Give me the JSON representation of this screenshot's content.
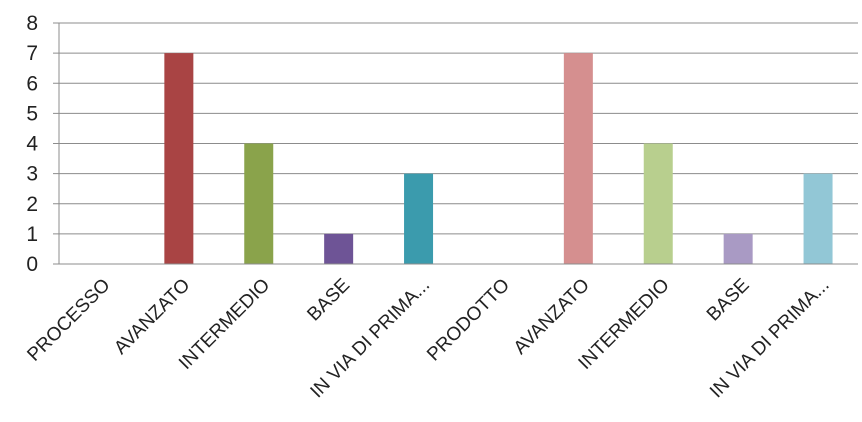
{
  "chart_data": {
    "type": "bar",
    "categories": [
      "PROCESSO",
      "AVANZATO",
      "INTERMEDIO",
      "BASE",
      "IN VIA DI PRIMA...",
      "PRODOTTO",
      "AVANZATO",
      "INTERMEDIO",
      "BASE",
      "IN VIA DI PRIMA..."
    ],
    "values": [
      0,
      7,
      4,
      1,
      3,
      0,
      7,
      4,
      1,
      3
    ],
    "colors": [
      "#A94444",
      "#A94444",
      "#8AA34B",
      "#6E5496",
      "#3B9BAD",
      "#D58F8F",
      "#D58F8F",
      "#B8CF8E",
      "#A99AC4",
      "#92C7D6"
    ],
    "ylim": [
      0,
      8
    ],
    "yticks": [
      "0",
      "1",
      "2",
      "3",
      "4",
      "5",
      "6",
      "7",
      "8"
    ],
    "grid": true,
    "title": "",
    "xlabel": "",
    "ylabel": ""
  }
}
